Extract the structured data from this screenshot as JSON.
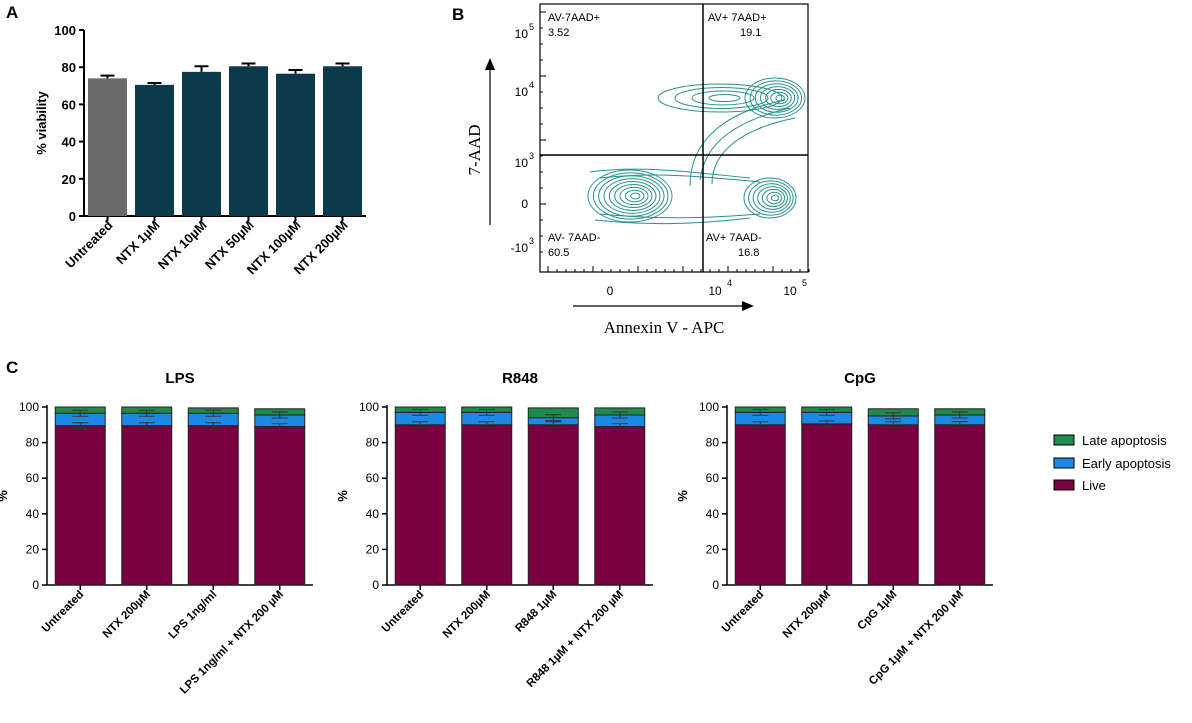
{
  "panel_labels": {
    "a": "A",
    "b": "B",
    "c": "C"
  },
  "colors": {
    "untreated_bar": "#6b6b6b",
    "ntx_bar": "#0b3a4a",
    "live": "#7a0040",
    "early": "#1e88e5",
    "late": "#1f8a4c",
    "contour": "#2a9090"
  },
  "chart_data": [
    {
      "id": "A",
      "type": "bar",
      "title": "",
      "ylabel": "% viability",
      "xlabel": "",
      "ylim": [
        0,
        100
      ],
      "yticks": [
        "0",
        "20",
        "40",
        "60",
        "80",
        "100"
      ],
      "categories": [
        "Untreated",
        "NTX 1µM",
        "NTX 10µM",
        "NTX 50µM",
        "NTX 100µM",
        "NTX 200µM"
      ],
      "values": [
        74,
        70.5,
        77.5,
        80.5,
        76.5,
        80.5
      ],
      "errors": [
        1.5,
        1,
        3,
        1.5,
        2,
        1.5
      ]
    },
    {
      "id": "B",
      "type": "contour",
      "xlabel": "Annexin V - APC",
      "ylabel": "7-AAD",
      "x_ticks": [
        "0",
        "10",
        "10"
      ],
      "x_tick_exponents": [
        "",
        "4",
        "5"
      ],
      "y_ticks": [
        "-10",
        "0",
        "10",
        "10",
        "10"
      ],
      "y_tick_exponents": [
        "3",
        "",
        "3",
        "4",
        "5"
      ],
      "quadrants": [
        {
          "name": "AV-7AAD+",
          "value": "3.52"
        },
        {
          "name": "AV+ 7AAD+",
          "value": "19.1"
        },
        {
          "name": "AV- 7AAD-",
          "value": "60.5"
        },
        {
          "name": "AV+ 7AAD-",
          "value": "16.8"
        }
      ]
    },
    {
      "id": "C-LPS",
      "type": "stacked-bar",
      "title": "LPS",
      "ylabel": "%",
      "ylim": [
        0,
        100
      ],
      "yticks": [
        "0",
        "20",
        "40",
        "60",
        "80",
        "100"
      ],
      "categories": [
        "Untreated",
        "NTX 200µM",
        "LPS 1ng/ml",
        "LPS 1ng/ml + NTX 200 µM"
      ],
      "series": [
        {
          "name": "Live",
          "values": [
            89.5,
            89.5,
            89.5,
            89
          ]
        },
        {
          "name": "Early apoptosis",
          "values": [
            7,
            7,
            7,
            6.5
          ]
        },
        {
          "name": "Late apoptosis",
          "values": [
            3.5,
            3.5,
            3,
            3.5
          ]
        }
      ]
    },
    {
      "id": "C-R848",
      "type": "stacked-bar",
      "title": "R848",
      "ylabel": "%",
      "ylim": [
        0,
        100
      ],
      "yticks": [
        "0",
        "20",
        "40",
        "60",
        "80",
        "100"
      ],
      "categories": [
        "Untreated",
        "NTX 200µM",
        "R848 1µM",
        "R848 1µM + NTX 200 µM"
      ],
      "series": [
        {
          "name": "Live",
          "values": [
            90,
            90,
            90,
            89
          ]
        },
        {
          "name": "Early apoptosis",
          "values": [
            7,
            7,
            4,
            6.5
          ]
        },
        {
          "name": "Late apoptosis",
          "values": [
            3,
            3,
            5.5,
            4
          ]
        }
      ]
    },
    {
      "id": "C-CpG",
      "type": "stacked-bar",
      "title": "CpG",
      "ylabel": "%",
      "ylim": [
        0,
        100
      ],
      "yticks": [
        "0",
        "20",
        "40",
        "60",
        "80",
        "100"
      ],
      "categories": [
        "Untreated",
        "NTX 200µM",
        "CpG 1µM",
        "CpG 1µM + NTX 200 µM"
      ],
      "series": [
        {
          "name": "Live",
          "values": [
            90,
            90.5,
            90,
            90
          ]
        },
        {
          "name": "Early apoptosis",
          "values": [
            7,
            6.5,
            5,
            5.5
          ]
        },
        {
          "name": "Late apoptosis",
          "values": [
            3,
            3,
            4,
            3.5
          ]
        }
      ]
    }
  ],
  "legend": [
    "Late apoptosis",
    "Early apoptosis",
    "Live"
  ]
}
